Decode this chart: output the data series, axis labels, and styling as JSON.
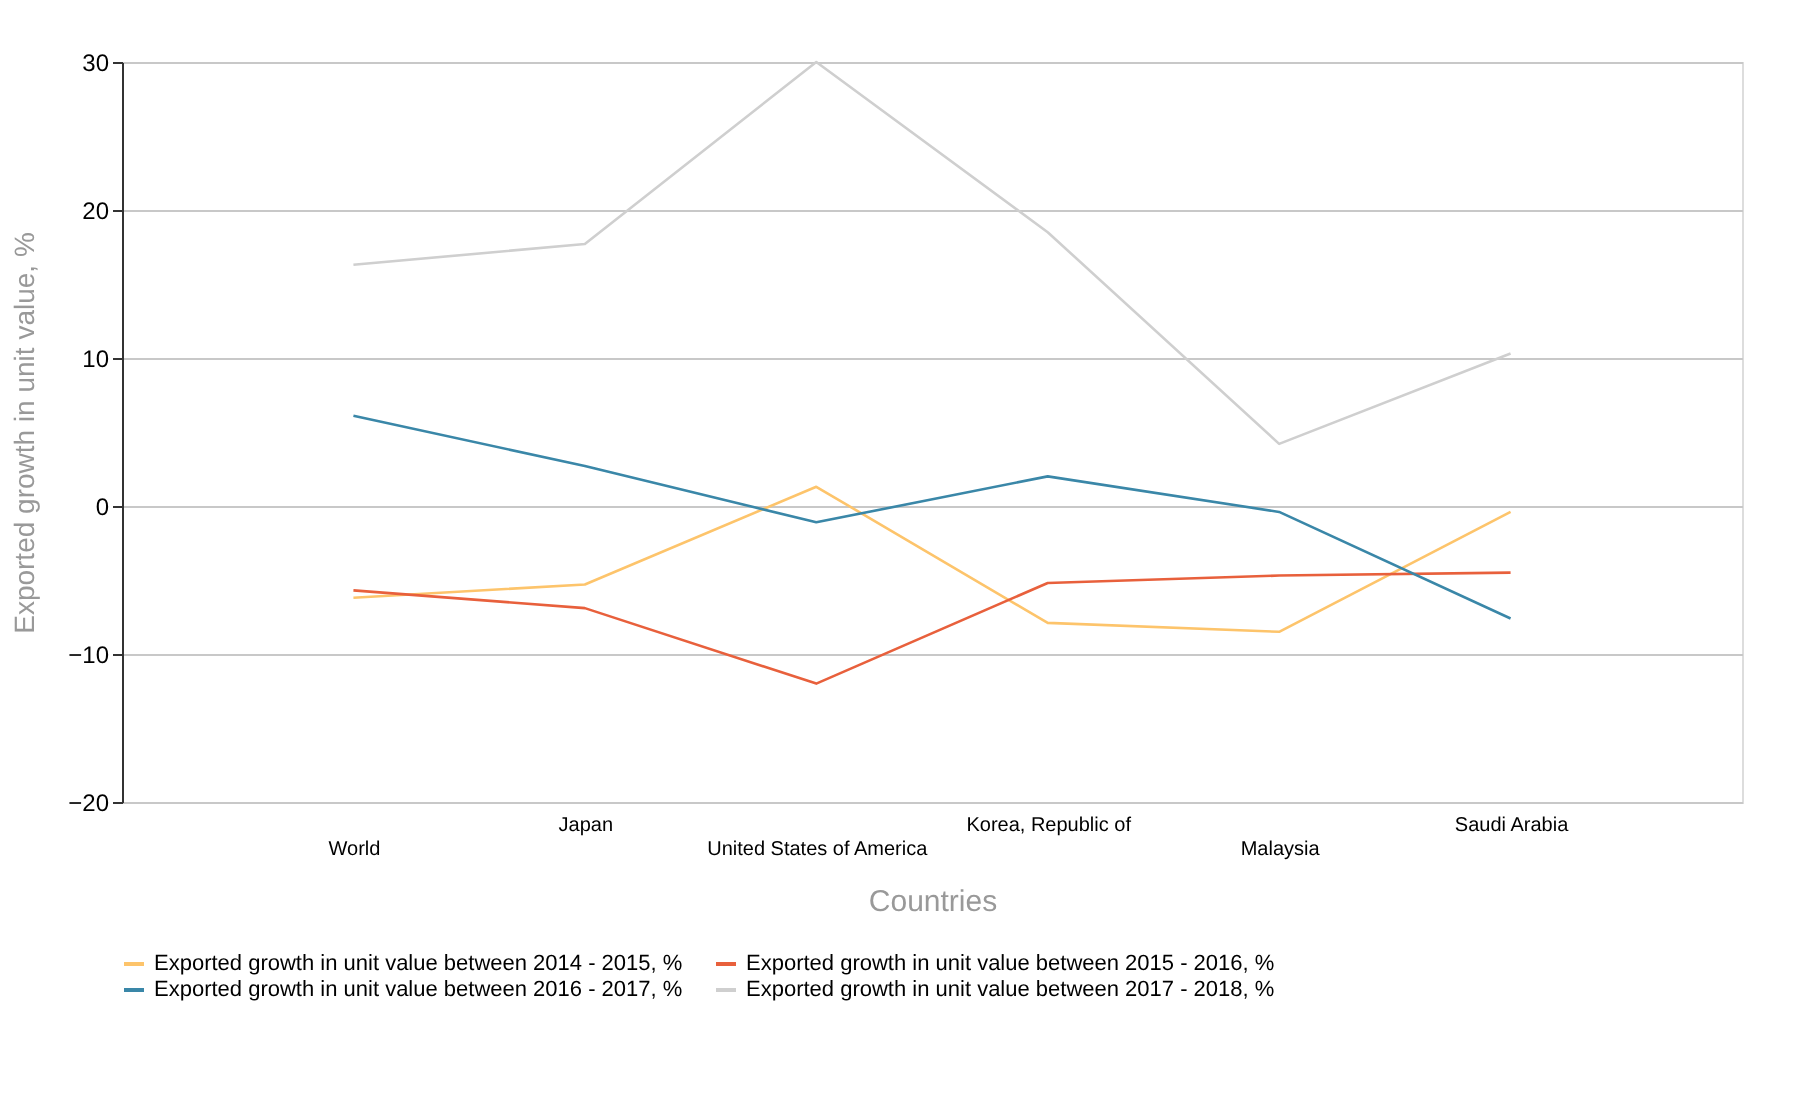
{
  "chart_data": {
    "type": "line",
    "xlabel": "Countries",
    "ylabel": "Exported growth in unit value, %",
    "categories": [
      "World",
      "Japan",
      "United States of America",
      "Korea, Republic of",
      "Malaysia",
      "Saudi Arabia"
    ],
    "series": [
      {
        "name": "Exported growth in unit value between 2014 - 2015, %",
        "color": "#fdc46b",
        "values": [
          -6.2,
          -5.3,
          1.3,
          -7.9,
          -8.5,
          -0.4
        ]
      },
      {
        "name": "Exported growth in unit value between 2015 - 2016, %",
        "color": "#e8603c",
        "values": [
          -5.7,
          -6.9,
          -12.0,
          -5.2,
          -4.7,
          -4.5
        ]
      },
      {
        "name": "Exported growth in unit value between 2016 - 2017, %",
        "color": "#3a87a8",
        "values": [
          6.1,
          2.7,
          -1.1,
          2.0,
          -0.4,
          -7.6
        ]
      },
      {
        "name": "Exported growth in unit value between 2017 - 2018, %",
        "color": "#cfcfcf",
        "values": [
          16.3,
          17.7,
          30.0,
          18.5,
          4.2,
          10.3
        ]
      }
    ],
    "ylim": [
      -20,
      30
    ],
    "yticks": [
      -20,
      -10,
      0,
      10,
      20,
      30
    ],
    "grid": "y",
    "legend": "bottom",
    "marker": "none",
    "line_style": "solid"
  }
}
